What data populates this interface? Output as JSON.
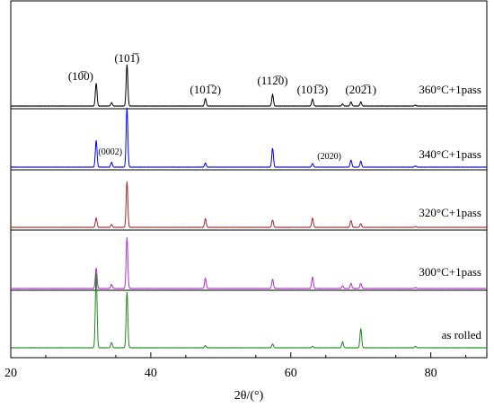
{
  "chart_data": {
    "type": "line",
    "xlabel": "2θ/(°)",
    "xlim": [
      20,
      88
    ],
    "x_ticks": [
      20,
      40,
      60,
      80
    ],
    "series": [
      {
        "name": "360°C+1pass",
        "color": "#000000",
        "peaks": [
          {
            "x": 32.2,
            "h": 0.55
          },
          {
            "x": 34.4,
            "h": 0.08
          },
          {
            "x": 36.6,
            "h": 1.0
          },
          {
            "x": 47.8,
            "h": 0.18
          },
          {
            "x": 57.4,
            "h": 0.28
          },
          {
            "x": 63.1,
            "h": 0.17
          },
          {
            "x": 67.4,
            "h": 0.05
          },
          {
            "x": 68.6,
            "h": 0.1
          },
          {
            "x": 70.0,
            "h": 0.1
          },
          {
            "x": 77.8,
            "h": 0.02
          }
        ]
      },
      {
        "name": "340°C+1pass",
        "color": "#0000ff",
        "peaks": [
          {
            "x": 32.2,
            "h": 0.45
          },
          {
            "x": 34.4,
            "h": 0.08
          },
          {
            "x": 36.6,
            "h": 1.0
          },
          {
            "x": 47.8,
            "h": 0.07
          },
          {
            "x": 57.4,
            "h": 0.32
          },
          {
            "x": 63.1,
            "h": 0.06
          },
          {
            "x": 68.6,
            "h": 0.12
          },
          {
            "x": 70.0,
            "h": 0.1
          },
          {
            "x": 77.8,
            "h": 0.02
          }
        ]
      },
      {
        "name": "320°C+1pass",
        "color": "#a52a2a",
        "peaks": [
          {
            "x": 32.2,
            "h": 0.2
          },
          {
            "x": 34.4,
            "h": 0.06
          },
          {
            "x": 36.6,
            "h": 1.0
          },
          {
            "x": 47.8,
            "h": 0.19
          },
          {
            "x": 57.4,
            "h": 0.16
          },
          {
            "x": 63.1,
            "h": 0.2
          },
          {
            "x": 68.6,
            "h": 0.15
          },
          {
            "x": 70.0,
            "h": 0.08
          },
          {
            "x": 77.8,
            "h": 0.02
          }
        ]
      },
      {
        "name": "300°C+1pass",
        "color": "#b030d0",
        "peaks": [
          {
            "x": 32.2,
            "h": 0.4
          },
          {
            "x": 34.4,
            "h": 0.08
          },
          {
            "x": 36.6,
            "h": 1.0
          },
          {
            "x": 47.8,
            "h": 0.2
          },
          {
            "x": 57.4,
            "h": 0.18
          },
          {
            "x": 63.1,
            "h": 0.22
          },
          {
            "x": 67.4,
            "h": 0.05
          },
          {
            "x": 68.6,
            "h": 0.1
          },
          {
            "x": 70.0,
            "h": 0.1
          },
          {
            "x": 77.8,
            "h": 0.02
          }
        ]
      },
      {
        "name": "as rolled",
        "color": "#1e8a1e",
        "peaks": [
          {
            "x": 32.2,
            "h": 1.0
          },
          {
            "x": 34.4,
            "h": 0.07
          },
          {
            "x": 36.6,
            "h": 0.75
          },
          {
            "x": 47.8,
            "h": 0.03
          },
          {
            "x": 57.4,
            "h": 0.05
          },
          {
            "x": 63.1,
            "h": 0.02
          },
          {
            "x": 67.4,
            "h": 0.08
          },
          {
            "x": 70.0,
            "h": 0.26
          },
          {
            "x": 77.8,
            "h": 0.02
          }
        ]
      }
    ],
    "peak_labels": [
      {
        "text": "(10̅0)",
        "x": 30.0,
        "series": 0
      },
      {
        "text": "(101̅)",
        "x": 36.6,
        "series": 0
      },
      {
        "text": "(101̅2)",
        "x": 47.8,
        "series": 0
      },
      {
        "text": "(112̅0)",
        "x": 57.4,
        "series": 0
      },
      {
        "text": "(101̅3)",
        "x": 63.1,
        "series": 0
      },
      {
        "text": "(202̅1)",
        "x": 70.0,
        "series": 0
      },
      {
        "text": "(0002)",
        "x": 34.2,
        "series": 1
      },
      {
        "text": "(2020)",
        "x": 65.5,
        "series": 1
      }
    ]
  }
}
